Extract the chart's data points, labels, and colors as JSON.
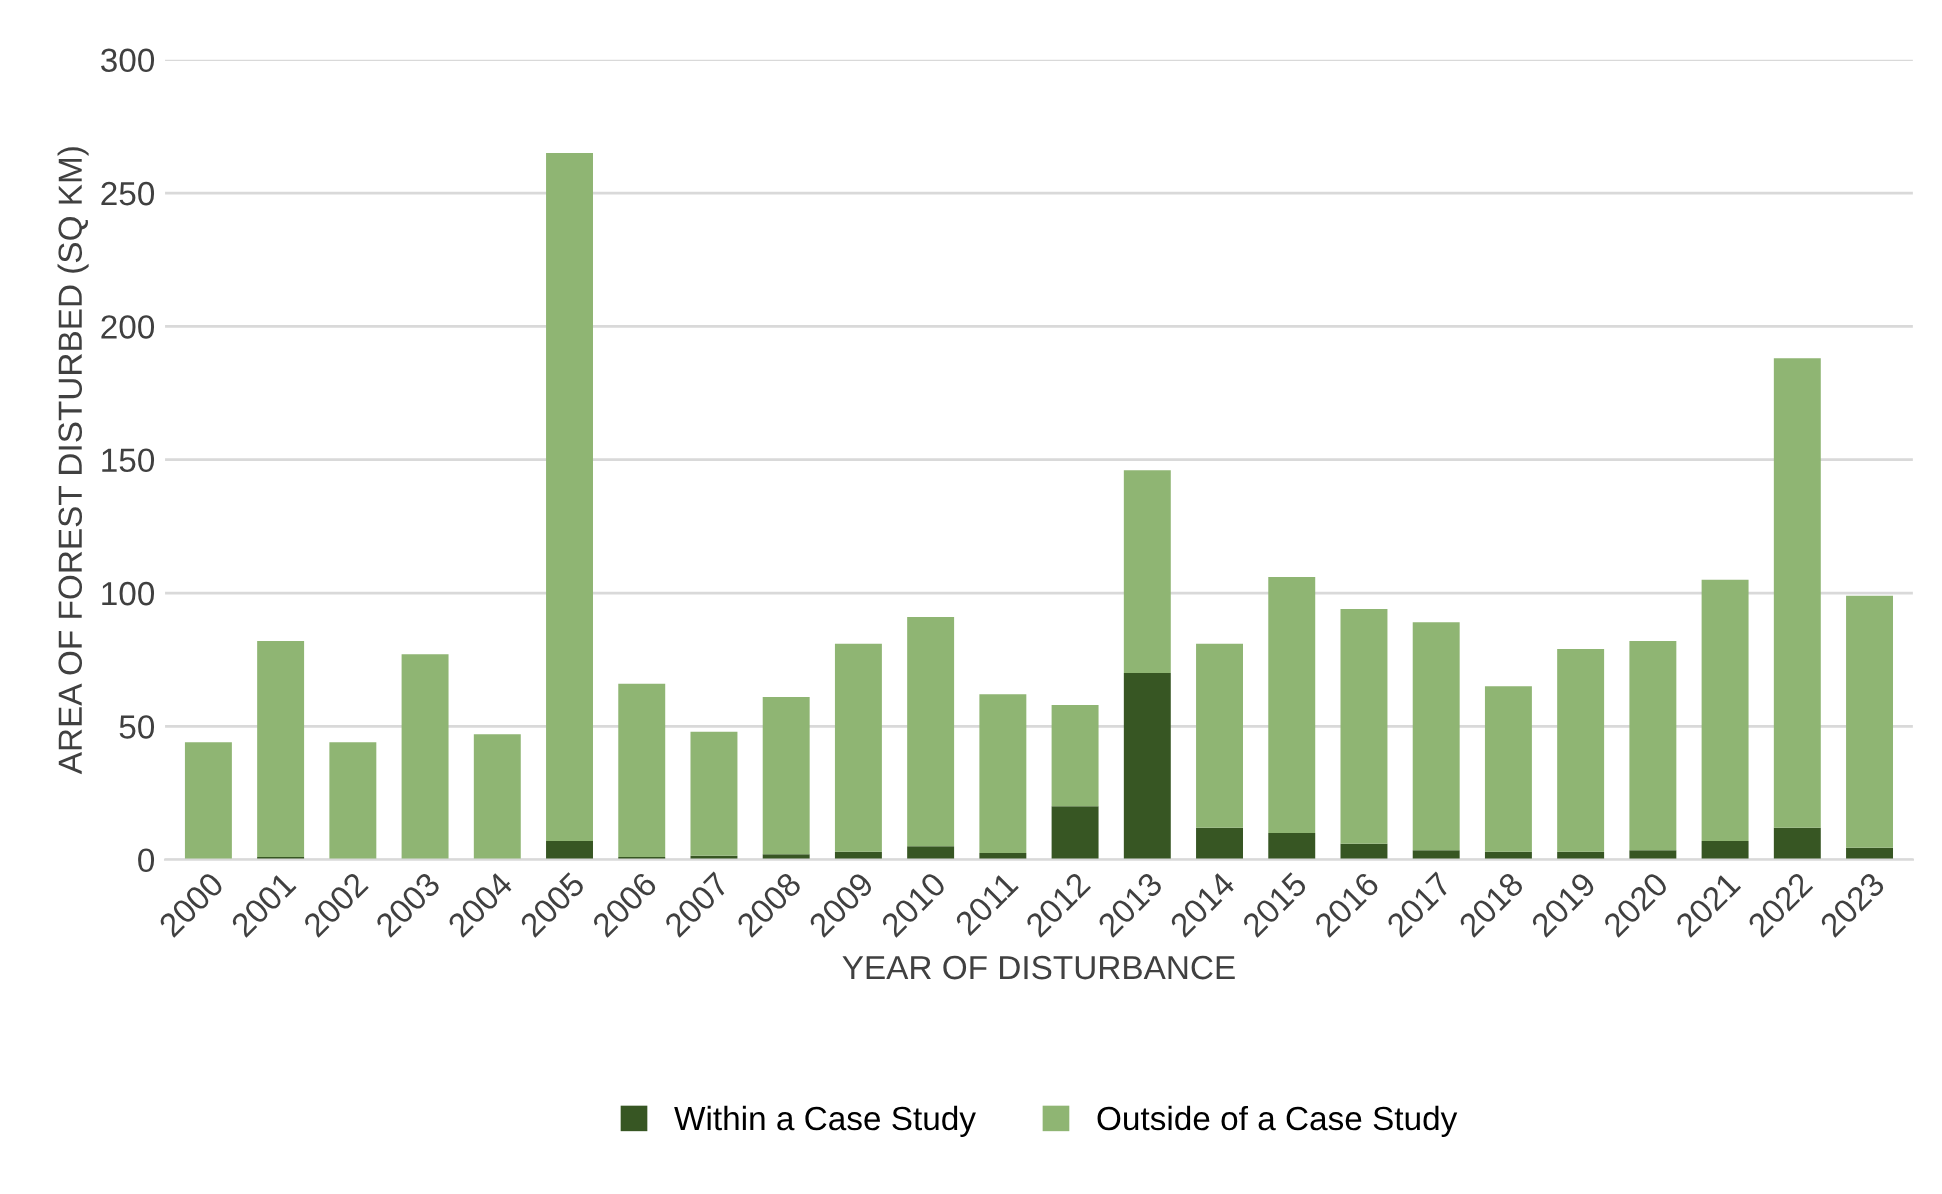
{
  "chart_data": {
    "type": "bar",
    "stacked": true,
    "xlabel": "YEAR OF DISTURBANCE",
    "ylabel": "AREA OF FOREST DISTURBED (SQ KM)",
    "categories": [
      "2000",
      "2001",
      "2002",
      "2003",
      "2004",
      "2005",
      "2006",
      "2007",
      "2008",
      "2009",
      "2010",
      "2011",
      "2012",
      "2013",
      "2014",
      "2015",
      "2016",
      "2017",
      "2018",
      "2019",
      "2020",
      "2021",
      "2022",
      "2023"
    ],
    "series": [
      {
        "name": "Within a Case Study",
        "color": "#375623",
        "values": [
          0,
          1,
          0,
          0,
          0,
          7,
          1,
          1.5,
          2,
          3,
          5,
          2.5,
          20,
          70,
          12,
          10,
          6,
          3.5,
          3,
          3,
          3.5,
          7,
          12,
          4.5
        ]
      },
      {
        "name": "Outside of a Case Study",
        "color": "#8fb573",
        "values": [
          44,
          81,
          44,
          77,
          47,
          258,
          65,
          46.5,
          59,
          78,
          86,
          59.5,
          38,
          76,
          69,
          96,
          88,
          85.5,
          62,
          76,
          78.5,
          98,
          176,
          94.5
        ]
      }
    ],
    "ylim": [
      0,
      300
    ],
    "yticks": [
      0,
      50,
      100,
      150,
      200,
      250,
      300
    ],
    "grid": "y",
    "legend": "bottom"
  }
}
